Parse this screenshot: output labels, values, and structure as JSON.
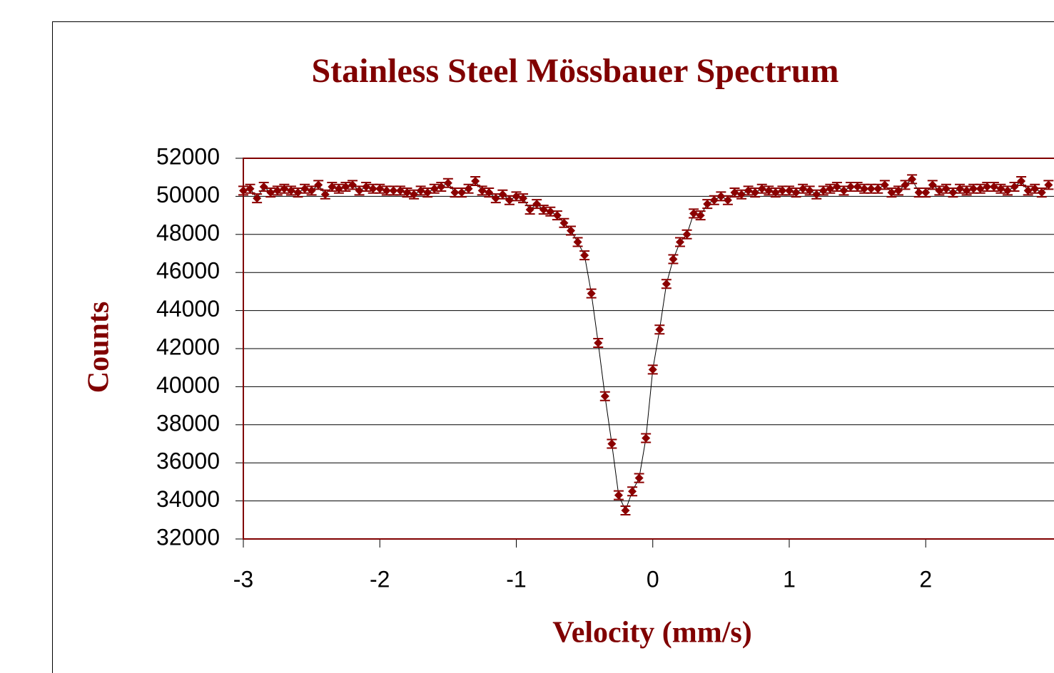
{
  "chart_data": {
    "type": "scatter",
    "title": "Stainless Steel Mössbauer Spectrum",
    "x_label": "Velocity (mm/s)",
    "y_label": "Counts",
    "x": [
      -3.0,
      -2.95,
      -2.9,
      -2.85,
      -2.8,
      -2.75,
      -2.7,
      -2.65,
      -2.6,
      -2.55,
      -2.5,
      -2.45,
      -2.4,
      -2.35,
      -2.3,
      -2.25,
      -2.2,
      -2.15,
      -2.1,
      -2.05,
      -2.0,
      -1.95,
      -1.9,
      -1.85,
      -1.8,
      -1.75,
      -1.7,
      -1.65,
      -1.6,
      -1.55,
      -1.5,
      -1.45,
      -1.4,
      -1.35,
      -1.3,
      -1.25,
      -1.2,
      -1.15,
      -1.1,
      -1.05,
      -1.0,
      -0.95,
      -0.9,
      -0.85,
      -0.8,
      -0.75,
      -0.7,
      -0.65,
      -0.6,
      -0.55,
      -0.5,
      -0.45,
      -0.4,
      -0.35,
      -0.3,
      -0.25,
      -0.2,
      -0.15,
      -0.1,
      -0.05,
      0.0,
      0.05,
      0.1,
      0.15,
      0.2,
      0.25,
      0.3,
      0.35,
      0.4,
      0.45,
      0.5,
      0.55,
      0.6,
      0.65,
      0.7,
      0.75,
      0.8,
      0.85,
      0.9,
      0.95,
      1.0,
      1.05,
      1.1,
      1.15,
      1.2,
      1.25,
      1.3,
      1.35,
      1.4,
      1.45,
      1.5,
      1.55,
      1.6,
      1.65,
      1.7,
      1.75,
      1.8,
      1.85,
      1.9,
      1.95,
      2.0,
      2.05,
      2.1,
      2.15,
      2.2,
      2.25,
      2.3,
      2.35,
      2.4,
      2.45,
      2.5,
      2.55,
      2.6,
      2.65,
      2.7,
      2.75,
      2.8,
      2.85,
      2.9
    ],
    "series": [
      {
        "color": "#8b0000",
        "line_color": "#000000",
        "values": [
          50300,
          50400,
          49900,
          50500,
          50200,
          50300,
          50400,
          50300,
          50200,
          50400,
          50300,
          50600,
          50100,
          50500,
          50400,
          50500,
          50600,
          50300,
          50500,
          50400,
          50400,
          50300,
          50300,
          50300,
          50200,
          50100,
          50300,
          50200,
          50400,
          50500,
          50700,
          50200,
          50200,
          50400,
          50800,
          50300,
          50200,
          49900,
          50100,
          49800,
          50000,
          49900,
          49300,
          49600,
          49300,
          49200,
          49000,
          48600,
          48200,
          47600,
          46900,
          44900,
          42300,
          39500,
          37000,
          34300,
          33500,
          34500,
          35200,
          37300,
          40900,
          43000,
          45400,
          46700,
          47600,
          48000,
          49100,
          49000,
          49600,
          49800,
          50000,
          49800,
          50200,
          50100,
          50300,
          50200,
          50400,
          50300,
          50200,
          50300,
          50300,
          50200,
          50400,
          50300,
          50100,
          50300,
          50400,
          50500,
          50300,
          50500,
          50500,
          50400,
          50400,
          50400,
          50600,
          50200,
          50300,
          50600,
          50900,
          50200,
          50200,
          50600,
          50300,
          50400,
          50200,
          50400,
          50300,
          50400,
          50400,
          50500,
          50500,
          50400,
          50300,
          50500,
          50800,
          50300,
          50400,
          50200,
          50600
        ]
      }
    ],
    "error_bar": 225,
    "xlim": [
      -3,
      2.94
    ],
    "xticks": [
      -3,
      -2,
      -1,
      0,
      1,
      2
    ],
    "ylim": [
      32000,
      52000
    ],
    "yticks": [
      32000,
      34000,
      36000,
      38000,
      40000,
      42000,
      44000,
      46000,
      48000,
      50000,
      52000
    ],
    "grid": true
  }
}
